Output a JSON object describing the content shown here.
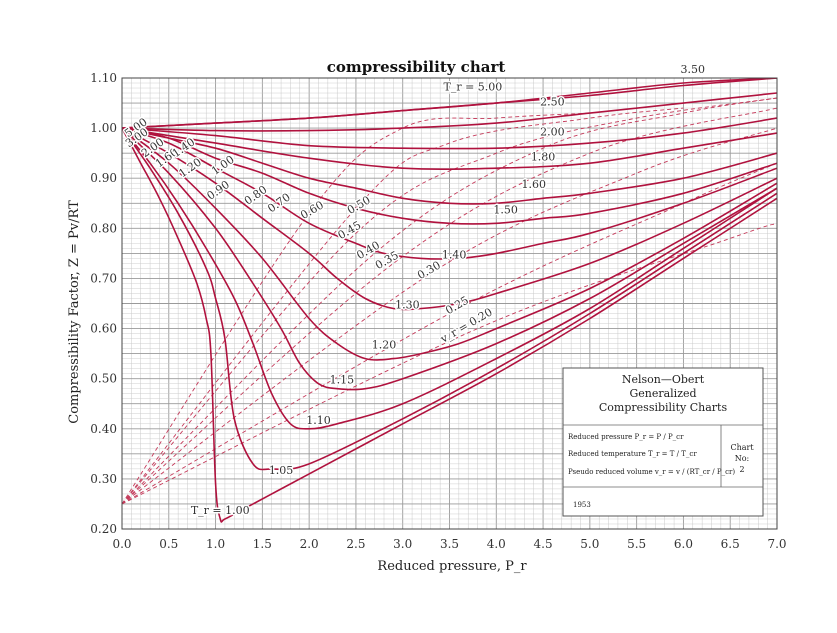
{
  "chart_data": {
    "type": "line",
    "title": "compressibility chart",
    "xlabel": "Reduced pressure, P_r",
    "ylabel": "Compressibility Factor, Z = Pv/RT",
    "xlim": [
      0.0,
      7.0
    ],
    "ylim": [
      0.2,
      1.1
    ],
    "x_ticks": [
      "0.0",
      "0.5",
      "1.0",
      "1.5",
      "2.0",
      "2.5",
      "3.0",
      "3.5",
      "4.0",
      "4.5",
      "5.0",
      "5.5",
      "6.0",
      "6.5",
      "7.0"
    ],
    "y_ticks": [
      "0.20",
      "0.30",
      "0.40",
      "0.50",
      "0.60",
      "0.70",
      "0.80",
      "0.90",
      "1.00",
      "1.10"
    ],
    "grid": true,
    "isotherms": [
      {
        "name": "T_r = 1.00",
        "label": "T_r = 1.00",
        "label_at": [
          1.05,
          0.23
        ],
        "x": [
          0.0,
          0.2,
          0.4,
          0.6,
          0.8,
          0.9,
          0.95,
          1.0,
          1.05,
          1.1,
          1.3,
          1.6,
          2.0,
          3.0,
          4.0,
          5.0,
          6.0,
          7.0
        ],
        "y": [
          1.0,
          0.93,
          0.86,
          0.78,
          0.69,
          0.62,
          0.55,
          0.29,
          0.22,
          0.22,
          0.24,
          0.27,
          0.31,
          0.41,
          0.51,
          0.62,
          0.74,
          0.86
        ]
      },
      {
        "name": "1.05",
        "label": "1.05",
        "label_at": [
          1.7,
          0.31
        ],
        "x": [
          0.0,
          0.3,
          0.6,
          0.9,
          1.0,
          1.1,
          1.2,
          1.4,
          1.6,
          2.0,
          3.0,
          4.0,
          5.0,
          6.0,
          7.0
        ],
        "y": [
          1.0,
          0.92,
          0.83,
          0.72,
          0.66,
          0.58,
          0.42,
          0.33,
          0.32,
          0.33,
          0.42,
          0.52,
          0.63,
          0.75,
          0.87
        ]
      },
      {
        "name": "1.10",
        "label": "1.10",
        "label_at": [
          2.1,
          0.41
        ],
        "x": [
          0.0,
          0.3,
          0.6,
          0.9,
          1.2,
          1.4,
          1.6,
          1.8,
          2.0,
          2.3,
          3.0,
          4.0,
          5.0,
          6.0,
          7.0
        ],
        "y": [
          1.0,
          0.93,
          0.85,
          0.76,
          0.66,
          0.57,
          0.47,
          0.41,
          0.4,
          0.41,
          0.45,
          0.54,
          0.64,
          0.76,
          0.88
        ]
      },
      {
        "name": "1.15",
        "label": "1.15",
        "label_at": [
          2.35,
          0.49
        ],
        "x": [
          0.0,
          0.5,
          1.0,
          1.4,
          1.7,
          1.9,
          2.1,
          2.3,
          2.6,
          3.0,
          4.0,
          5.0,
          6.0,
          7.0
        ],
        "y": [
          1.0,
          0.91,
          0.8,
          0.69,
          0.6,
          0.53,
          0.49,
          0.48,
          0.48,
          0.5,
          0.57,
          0.66,
          0.77,
          0.88
        ]
      },
      {
        "name": "1.20",
        "label": "1.20",
        "label_at": [
          2.8,
          0.56
        ],
        "x": [
          0.0,
          0.5,
          1.0,
          1.5,
          2.0,
          2.3,
          2.6,
          2.9,
          3.2,
          3.6,
          4.0,
          5.0,
          6.0,
          7.0
        ],
        "y": [
          1.0,
          0.93,
          0.84,
          0.74,
          0.62,
          0.57,
          0.54,
          0.54,
          0.55,
          0.57,
          0.6,
          0.68,
          0.78,
          0.89
        ]
      },
      {
        "name": "1.30",
        "label": "1.30",
        "label_at": [
          3.05,
          0.64
        ],
        "x": [
          0.0,
          0.5,
          1.0,
          1.5,
          2.0,
          2.3,
          2.6,
          2.9,
          3.2,
          3.6,
          4.0,
          5.0,
          6.0,
          7.0
        ],
        "y": [
          1.0,
          0.95,
          0.89,
          0.82,
          0.75,
          0.7,
          0.66,
          0.64,
          0.64,
          0.65,
          0.67,
          0.73,
          0.81,
          0.9
        ]
      },
      {
        "name": "1.40",
        "label": "1.40",
        "label_at": [
          3.55,
          0.74
        ],
        "x": [
          0.0,
          0.5,
          1.0,
          1.5,
          2.0,
          2.5,
          2.8,
          3.2,
          3.6,
          4.0,
          4.5,
          5.0,
          6.0,
          7.0
        ],
        "y": [
          1.0,
          0.97,
          0.92,
          0.87,
          0.81,
          0.77,
          0.75,
          0.74,
          0.74,
          0.75,
          0.77,
          0.79,
          0.85,
          0.92
        ]
      },
      {
        "name": "1.50",
        "label": "1.50",
        "label_at": [
          4.1,
          0.83
        ],
        "x": [
          0.0,
          0.5,
          1.0,
          1.5,
          2.0,
          2.5,
          3.0,
          3.5,
          4.0,
          4.5,
          5.0,
          6.0,
          7.0
        ],
        "y": [
          1.0,
          0.98,
          0.94,
          0.91,
          0.87,
          0.84,
          0.82,
          0.81,
          0.81,
          0.82,
          0.83,
          0.87,
          0.93
        ]
      },
      {
        "name": "1.60",
        "label": "1.60",
        "label_at": [
          4.4,
          0.88
        ],
        "x": [
          0.0,
          0.5,
          1.0,
          1.5,
          2.0,
          2.5,
          3.0,
          3.5,
          4.0,
          4.5,
          5.0,
          6.0,
          7.0
        ],
        "y": [
          1.0,
          0.98,
          0.96,
          0.93,
          0.9,
          0.88,
          0.86,
          0.85,
          0.85,
          0.86,
          0.87,
          0.9,
          0.95
        ]
      },
      {
        "name": "1.80",
        "label": "1.80",
        "label_at": [
          4.5,
          0.935
        ],
        "x": [
          0.0,
          1.0,
          2.0,
          3.0,
          4.0,
          5.0,
          6.0,
          7.0
        ],
        "y": [
          1.0,
          0.97,
          0.94,
          0.92,
          0.92,
          0.93,
          0.96,
          0.99
        ]
      },
      {
        "name": "2.00",
        "label": "2.00",
        "label_at": [
          4.6,
          0.985
        ],
        "x": [
          0.0,
          1.0,
          2.0,
          3.0,
          4.0,
          5.0,
          6.0,
          7.0
        ],
        "y": [
          1.0,
          0.985,
          0.965,
          0.96,
          0.96,
          0.97,
          0.99,
          1.02
        ]
      },
      {
        "name": "2.50",
        "label": "2.50",
        "label_at": [
          4.6,
          1.045
        ],
        "x": [
          0.0,
          1.0,
          2.0,
          3.0,
          4.0,
          5.0,
          6.0,
          7.0
        ],
        "y": [
          1.0,
          0.995,
          0.995,
          1.0,
          1.01,
          1.03,
          1.05,
          1.07
        ]
      },
      {
        "name": "3.50",
        "label": "3.50",
        "label_at": [
          6.1,
          1.11
        ],
        "x": [
          0.0,
          1.0,
          2.0,
          3.0,
          4.0,
          5.0,
          6.0,
          7.0
        ],
        "y": [
          1.0,
          1.01,
          1.02,
          1.035,
          1.05,
          1.07,
          1.09,
          1.1
        ]
      },
      {
        "name": "T_r = 5.00",
        "label": "T_r = 5.00",
        "label_at": [
          3.75,
          1.075
        ],
        "x": [
          0.0,
          1.0,
          2.0,
          3.0,
          4.0,
          5.0,
          6.0,
          7.0
        ],
        "y": [
          1.0,
          1.01,
          1.02,
          1.035,
          1.05,
          1.065,
          1.085,
          1.1
        ]
      },
      {
        "name": "5.00 (left)",
        "label": "5.00",
        "label_at": [
          0.17,
          0.995
        ],
        "x": [
          0.0,
          1.0
        ],
        "y": [
          1.0,
          1.0
        ]
      },
      {
        "name": "3.00 (left)",
        "label": "3.00",
        "label_at": [
          0.18,
          0.975
        ],
        "x": [
          0.0,
          1.0
        ],
        "y": [
          1.0,
          1.0
        ]
      },
      {
        "name": "2.00 (left)",
        "label": "2.00",
        "label_at": [
          0.35,
          0.955
        ],
        "x": [
          0.0,
          1.0
        ],
        "y": [
          1.0,
          1.0
        ]
      },
      {
        "name": "1.60 (left)",
        "label": "1.60",
        "label_at": [
          0.5,
          0.935
        ],
        "x": [
          0.0,
          1.0
        ],
        "y": [
          1.0,
          1.0
        ]
      },
      {
        "name": "1.40 (left)",
        "label": "1.40",
        "label_at": [
          0.68,
          0.955
        ],
        "x": [
          0.0,
          1.0
        ],
        "y": [
          1.0,
          1.0
        ]
      },
      {
        "name": "1.20 (left)",
        "label": "1.20",
        "label_at": [
          0.75,
          0.915
        ],
        "x": [
          0.0,
          1.0
        ],
        "y": [
          1.0,
          1.0
        ]
      },
      {
        "name": "1.00 (left)",
        "label": "1.00",
        "label_at": [
          1.1,
          0.92
        ],
        "x": [
          0.0,
          1.0
        ],
        "y": [
          1.0,
          1.0
        ]
      },
      {
        "name": "0.90 (left)",
        "label": "0.90",
        "label_at": [
          1.05,
          0.87
        ],
        "x": [
          0.0,
          1.0
        ],
        "y": [
          1.0,
          1.0
        ]
      },
      {
        "name": "0.80 (left)",
        "label": "0.80",
        "label_at": [
          1.45,
          0.86
        ],
        "x": [
          0.0,
          1.0
        ],
        "y": [
          1.0,
          1.0
        ]
      },
      {
        "name": "0.70 (left)",
        "label": "0.70",
        "label_at": [
          1.7,
          0.845
        ],
        "x": [
          0.0,
          1.0
        ],
        "y": [
          1.0,
          1.0
        ]
      }
    ],
    "vr_lines": [
      {
        "label": "0.60",
        "label_at": [
          2.05,
          0.83
        ],
        "x": [
          0.0,
          2.0,
          3.0,
          4.0,
          5.0
        ],
        "y": [
          0.25,
          0.83,
          1.0,
          1.02,
          1.03
        ]
      },
      {
        "label": "0.50",
        "label_at": [
          2.55,
          0.84
        ],
        "x": [
          0.0,
          2.5,
          3.5,
          5.0,
          6.0
        ],
        "y": [
          0.25,
          0.84,
          0.97,
          1.02,
          1.04
        ]
      },
      {
        "label": "0.45",
        "label_at": [
          2.45,
          0.79
        ],
        "x": [
          0.0,
          2.5,
          4.0,
          5.5,
          7.0
        ],
        "y": [
          0.25,
          0.79,
          0.95,
          1.02,
          1.06
        ]
      },
      {
        "label": "0.40",
        "label_at": [
          2.65,
          0.75
        ],
        "x": [
          0.0,
          2.7,
          4.5,
          6.0,
          7.0
        ],
        "y": [
          0.25,
          0.75,
          0.96,
          1.03,
          1.06
        ]
      },
      {
        "label": "0.35",
        "label_at": [
          2.85,
          0.73
        ],
        "x": [
          0.0,
          2.9,
          5.0,
          7.0
        ],
        "y": [
          0.25,
          0.73,
          0.95,
          1.04
        ]
      },
      {
        "label": "0.30",
        "label_at": [
          3.3,
          0.71
        ],
        "x": [
          0.0,
          3.3,
          5.5,
          7.0
        ],
        "y": [
          0.25,
          0.71,
          0.91,
          1.0
        ]
      },
      {
        "label": "0.25",
        "label_at": [
          3.6,
          0.64
        ],
        "x": [
          0.0,
          3.6,
          6.0,
          7.0
        ],
        "y": [
          0.25,
          0.64,
          0.85,
          0.93
        ]
      },
      {
        "label": "v_r = 0.20",
        "label_at": [
          3.7,
          0.6
        ],
        "x": [
          0.0,
          3.8,
          6.5,
          7.0
        ],
        "y": [
          0.25,
          0.6,
          0.78,
          0.81
        ]
      }
    ],
    "info_box": {
      "title_lines": [
        "Nelson—Obert",
        "Generalized",
        "Compressibility Charts"
      ],
      "definitions": [
        "Reduced pressure P_r = P / P_cr",
        "Reduced temperature T_r = T / T_cr",
        "Pseudo reduced volume v_r = v / (RT_cr / P_cr)"
      ],
      "chart_label": "Chart",
      "chart_no_label": "No:",
      "chart_no": "2",
      "year": "1953"
    },
    "colors": {
      "curve": "#b0123e",
      "vr": "#c43a5a",
      "grid_major": "#9a9a9a",
      "grid_minor": "#c9c9c9"
    }
  }
}
